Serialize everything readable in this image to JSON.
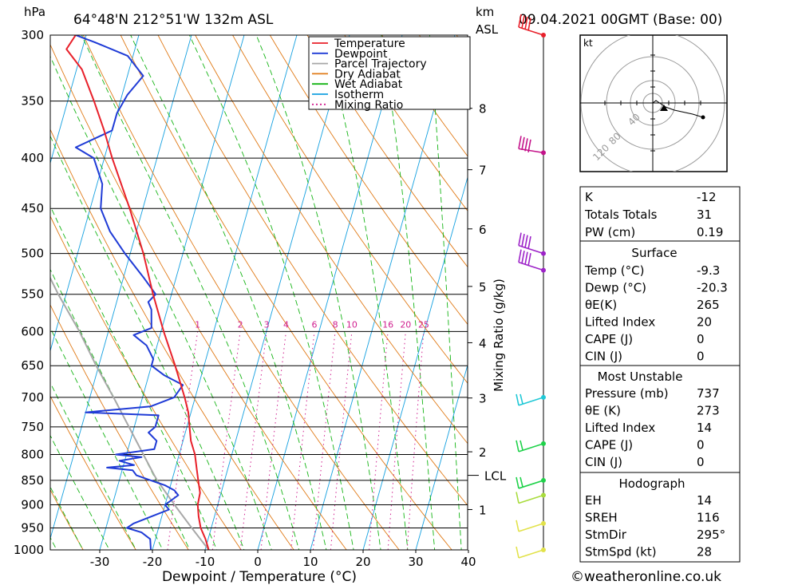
{
  "header": {
    "hpa_label": "hPa",
    "location": "64°48'N  212°51'W  132m  ASL",
    "km_label": "km",
    "asl_label": "ASL",
    "datetime": "09.04.2021  00GMT  (Base: 00)"
  },
  "chart_data": {
    "type": "line",
    "title": "64°48'N  212°51'W  132m  ASL",
    "xlabel": "Dewpoint / Temperature (°C)",
    "ylabel": "hPa",
    "xlim": [
      -40,
      40
    ],
    "ylim": [
      1000,
      300
    ],
    "x_ticks": [
      -30,
      -20,
      -10,
      0,
      10,
      20,
      30,
      40
    ],
    "pressure_levels": [
      300,
      350,
      400,
      450,
      500,
      550,
      600,
      650,
      700,
      750,
      800,
      850,
      900,
      950,
      1000
    ],
    "height_km_ticks": [
      {
        "km": "1",
        "p": 910
      },
      {
        "km": "2",
        "p": 795
      },
      {
        "km": "3",
        "p": 701
      },
      {
        "km": "4",
        "p": 616
      },
      {
        "km": "5",
        "p": 540
      },
      {
        "km": "6",
        "p": 472
      },
      {
        "km": "7",
        "p": 411
      },
      {
        "km": "8",
        "p": 356
      }
    ],
    "lcl": {
      "label": "LCL",
      "p": 840
    },
    "mixing_ratio_label": "Mixing Ratio (g/kg)",
    "mixing_ratio_values": [
      "1",
      "2",
      "3",
      "4",
      "6",
      "8",
      "10",
      "16",
      "20",
      "25"
    ],
    "legend": [
      {
        "name": "Temperature",
        "color": "#e8202a"
      },
      {
        "name": "Dewpoint",
        "color": "#1f3bd6"
      },
      {
        "name": "Parcel Trajectory",
        "color": "#a8a8a8"
      },
      {
        "name": "Dry Adiabat",
        "color": "#e07a17"
      },
      {
        "name": "Wet Adiabat",
        "color": "#14b414"
      },
      {
        "name": "Isotherm",
        "color": "#14a0e0"
      },
      {
        "name": "Mixing Ratio",
        "color": "#d01f8f"
      }
    ],
    "series": [
      {
        "name": "Temperature",
        "color": "#e8202a",
        "points": [
          [
            1000,
            -9.3
          ],
          [
            975,
            -10.5
          ],
          [
            950,
            -12
          ],
          [
            925,
            -13
          ],
          [
            900,
            -13.8
          ],
          [
            875,
            -14
          ],
          [
            850,
            -15
          ],
          [
            825,
            -16
          ],
          [
            800,
            -17
          ],
          [
            775,
            -18.5
          ],
          [
            750,
            -19.5
          ],
          [
            725,
            -20.5
          ],
          [
            700,
            -22
          ],
          [
            650,
            -25.5
          ],
          [
            600,
            -29.5
          ],
          [
            550,
            -33.5
          ],
          [
            500,
            -37.5
          ],
          [
            450,
            -42.5
          ],
          [
            400,
            -48.5
          ],
          [
            375,
            -51.5
          ],
          [
            350,
            -55
          ],
          [
            325,
            -59
          ],
          [
            310,
            -63
          ],
          [
            300,
            -62
          ]
        ]
      },
      {
        "name": "Dewpoint",
        "color": "#1f3bd6",
        "points": [
          [
            1000,
            -20.3
          ],
          [
            975,
            -21
          ],
          [
            960,
            -23
          ],
          [
            950,
            -26
          ],
          [
            940,
            -25
          ],
          [
            920,
            -21
          ],
          [
            910,
            -19
          ],
          [
            900,
            -20
          ],
          [
            880,
            -18
          ],
          [
            870,
            -19
          ],
          [
            860,
            -21
          ],
          [
            850,
            -24
          ],
          [
            840,
            -27
          ],
          [
            830,
            -28
          ],
          [
            825,
            -33
          ],
          [
            820,
            -28
          ],
          [
            812,
            -31
          ],
          [
            805,
            -27
          ],
          [
            800,
            -32
          ],
          [
            790,
            -25
          ],
          [
            775,
            -25
          ],
          [
            760,
            -27
          ],
          [
            750,
            -26
          ],
          [
            730,
            -26
          ],
          [
            725,
            -40
          ],
          [
            715,
            -28
          ],
          [
            700,
            -24
          ],
          [
            680,
            -23
          ],
          [
            665,
            -27
          ],
          [
            650,
            -30
          ],
          [
            640,
            -30
          ],
          [
            620,
            -32
          ],
          [
            605,
            -35
          ],
          [
            595,
            -32
          ],
          [
            570,
            -33
          ],
          [
            560,
            -34
          ],
          [
            550,
            -33
          ],
          [
            530,
            -36
          ],
          [
            500,
            -41
          ],
          [
            475,
            -45
          ],
          [
            450,
            -48
          ],
          [
            425,
            -49
          ],
          [
            400,
            -52
          ],
          [
            390,
            -56
          ],
          [
            375,
            -50
          ],
          [
            360,
            -50
          ],
          [
            345,
            -49
          ],
          [
            330,
            -47
          ],
          [
            315,
            -51
          ],
          [
            305,
            -58
          ],
          [
            300,
            -62
          ]
        ]
      },
      {
        "name": "Parcel Trajectory",
        "color": "#a8a8a8",
        "points": [
          [
            1000,
            -9.3
          ],
          [
            950,
            -13.7
          ],
          [
            900,
            -18.2
          ],
          [
            850,
            -22.8
          ],
          [
            840,
            -23.6
          ],
          [
            800,
            -26.8
          ],
          [
            750,
            -31
          ],
          [
            700,
            -35.5
          ],
          [
            650,
            -40.5
          ],
          [
            600,
            -45.5
          ],
          [
            550,
            -51.5
          ],
          [
            500,
            -57.5
          ],
          [
            450,
            -64
          ],
          [
            410,
            -70
          ]
        ]
      }
    ]
  },
  "hodograph": {
    "unit_label": "kt",
    "ring_labels": [
      "40",
      "80",
      "120"
    ]
  },
  "indices": {
    "k_label": "K",
    "k_value": "-12",
    "tt_label": "Totals Totals",
    "tt_value": "31",
    "pw_label": "PW (cm)",
    "pw_value": "0.19"
  },
  "surface": {
    "title": "Surface",
    "rows": [
      {
        "label": "Temp (°C)",
        "value": "-9.3"
      },
      {
        "label": "Dewp (°C)",
        "value": "-20.3"
      },
      {
        "label": "θE(K)",
        "value": "265"
      },
      {
        "label": "Lifted Index",
        "value": "20"
      },
      {
        "label": "CAPE (J)",
        "value": "0"
      },
      {
        "label": "CIN (J)",
        "value": "0"
      }
    ]
  },
  "most_unstable": {
    "title": "Most Unstable",
    "rows": [
      {
        "label": "Pressure (mb)",
        "value": "737"
      },
      {
        "label": "θE (K)",
        "value": "273"
      },
      {
        "label": "Lifted Index",
        "value": "14"
      },
      {
        "label": "CAPE (J)",
        "value": "0"
      },
      {
        "label": "CIN (J)",
        "value": "0"
      }
    ]
  },
  "hodograph_params": {
    "title": "Hodograph",
    "rows": [
      {
        "label": "EH",
        "value": "14"
      },
      {
        "label": "SREH",
        "value": "116"
      },
      {
        "label": "StmDir",
        "value": "295°"
      },
      {
        "label": "StmSpd (kt)",
        "value": "28"
      }
    ]
  },
  "wind_barbs": [
    {
      "p": 300,
      "color": "#e8202a"
    },
    {
      "p": 395,
      "color": "#c4138a"
    },
    {
      "p": 500,
      "color": "#9d23c8"
    },
    {
      "p": 520,
      "color": "#9d23c8"
    },
    {
      "p": 700,
      "color": "#21c8d6"
    },
    {
      "p": 780,
      "color": "#1fd24a"
    },
    {
      "p": 850,
      "color": "#1fd24a"
    },
    {
      "p": 880,
      "color": "#a8dc3c"
    },
    {
      "p": 940,
      "color": "#e2e24a"
    },
    {
      "p": 1000,
      "color": "#e2e24a"
    }
  ],
  "footer": {
    "copyright": "©weatheronline.co.uk"
  }
}
